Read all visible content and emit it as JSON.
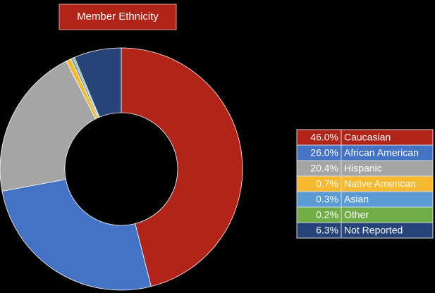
{
  "chart_data": {
    "type": "donut",
    "title": "Member Ethnicity",
    "categories": [
      "Caucasian",
      "African American",
      "Hispanic",
      "Native American",
      "Asian",
      "Other",
      "Not Reported"
    ],
    "values": [
      46.0,
      26.0,
      20.4,
      0.7,
      0.3,
      0.2,
      6.3
    ],
    "value_labels": [
      "46.0%",
      "26.0%",
      "20.4%",
      "0.7%",
      "0.3%",
      "0.2%",
      "6.3%"
    ],
    "colors": [
      "#b22418",
      "#4472c4",
      "#a5a5a5",
      "#f5b82e",
      "#5b9bd5",
      "#70ad47",
      "#264478"
    ],
    "legend": "right"
  }
}
